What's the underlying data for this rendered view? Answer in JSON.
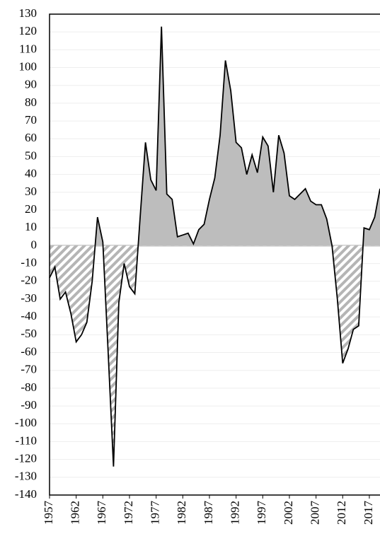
{
  "chart_data": {
    "type": "area",
    "x": [
      1957,
      1958,
      1959,
      1960,
      1961,
      1962,
      1963,
      1964,
      1965,
      1966,
      1967,
      1968,
      1969,
      1970,
      1971,
      1972,
      1973,
      1974,
      1975,
      1976,
      1977,
      1978,
      1979,
      1980,
      1981,
      1982,
      1983,
      1984,
      1985,
      1986,
      1987,
      1988,
      1989,
      1990,
      1991,
      1992,
      1993,
      1994,
      1995,
      1996,
      1997,
      1998,
      1999,
      2000,
      2001,
      2002,
      2003,
      2004,
      2005,
      2006,
      2007,
      2008,
      2009,
      2010,
      2011,
      2012,
      2013,
      2014,
      2015,
      2016,
      2017,
      2018,
      2019
    ],
    "values": [
      -18,
      -12,
      -30,
      -26,
      -38,
      -54,
      -50,
      -43,
      -20,
      16,
      2,
      -60,
      -124,
      -32,
      -10,
      -23,
      -27,
      16,
      58,
      37,
      31,
      123,
      29,
      26,
      5,
      6,
      7,
      1,
      9,
      12,
      26,
      38,
      62,
      104,
      87,
      58,
      55,
      40,
      51,
      41,
      61,
      56,
      30,
      62,
      52,
      28,
      26,
      29,
      32,
      25,
      23,
      23,
      15,
      0,
      -30,
      -66,
      -58,
      -47,
      -45,
      10,
      9,
      16,
      32
    ],
    "color": "#bdbdbd",
    "line_color": "#000000",
    "negative_fill": "hatched",
    "xlim": [
      1957,
      2019
    ],
    "xticks": [
      1957,
      1962,
      1967,
      1972,
      1977,
      1982,
      1987,
      1992,
      1997,
      2002,
      2007,
      2012,
      2017
    ],
    "ylim": [
      -140,
      130
    ],
    "yticks": [
      -140,
      -130,
      -120,
      -110,
      -100,
      -90,
      -80,
      -70,
      -60,
      -50,
      -40,
      -30,
      -20,
      -10,
      0,
      10,
      20,
      30,
      40,
      50,
      60,
      70,
      80,
      90,
      100,
      110,
      120,
      130
    ],
    "grid": true
  }
}
